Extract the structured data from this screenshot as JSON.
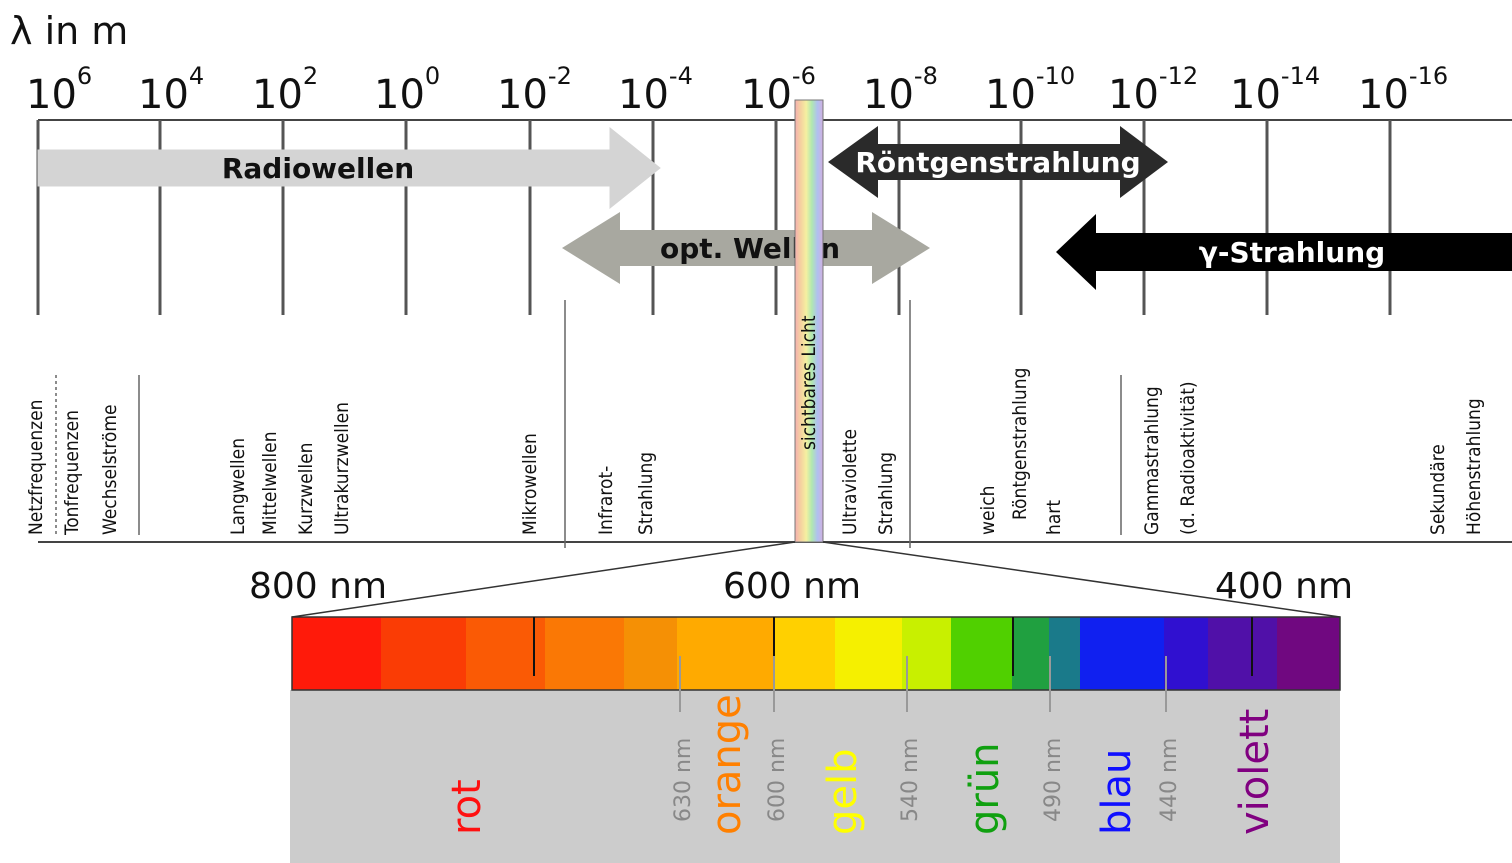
{
  "axis": {
    "title": "λ in m",
    "ticks": [
      {
        "base": "10",
        "exp": "6"
      },
      {
        "base": "10",
        "exp": "4"
      },
      {
        "base": "10",
        "exp": "2"
      },
      {
        "base": "10",
        "exp": "0"
      },
      {
        "base": "10",
        "exp": "-2"
      },
      {
        "base": "10",
        "exp": "-4"
      },
      {
        "base": "10",
        "exp": "-6"
      },
      {
        "base": "10",
        "exp": "-8"
      },
      {
        "base": "10",
        "exp": "-10"
      },
      {
        "base": "10",
        "exp": "-12"
      },
      {
        "base": "10",
        "exp": "-14"
      },
      {
        "base": "10",
        "exp": "-16"
      }
    ]
  },
  "arrows": {
    "radio": "Radiowellen",
    "xray": "Röntgenstrahlung",
    "optical": "opt. Wellen",
    "gamma": "γ-Strahlung"
  },
  "visible_label": "sichtbares Licht",
  "bands": [
    {
      "id": "netz",
      "lines": [
        "Netzfrequenzen"
      ]
    },
    {
      "id": "ton",
      "lines": [
        "Tonfrequenzen"
      ]
    },
    {
      "id": "wechsel",
      "lines": [
        "Wechselströme"
      ]
    },
    {
      "id": "lang",
      "lines": [
        "Langwellen"
      ]
    },
    {
      "id": "mittel",
      "lines": [
        "Mittelwellen"
      ]
    },
    {
      "id": "kurz",
      "lines": [
        "Kurzwellen"
      ]
    },
    {
      "id": "ukw",
      "lines": [
        "Ultrakurzwellen"
      ]
    },
    {
      "id": "mikro",
      "lines": [
        "Mikrowellen"
      ]
    },
    {
      "id": "ir",
      "lines": [
        "Infrarot-",
        "Strahlung"
      ]
    },
    {
      "id": "uv",
      "lines": [
        "Ultraviolette",
        "Strahlung"
      ]
    },
    {
      "id": "xray",
      "lines": [
        "weich",
        "Röntgenstrahlung",
        "hart"
      ]
    },
    {
      "id": "gamma",
      "lines": [
        "Gammastrahlung",
        "(d. Radioaktivität)"
      ]
    },
    {
      "id": "cosmic",
      "lines": [
        "Sekundäre",
        "Höhenstrahlung"
      ]
    }
  ],
  "spectrum": {
    "scale_labels": [
      "800 nm",
      "600 nm",
      "400 nm"
    ],
    "colors": [
      {
        "name": "rot",
        "color": "#ff1010"
      },
      {
        "name": "orange",
        "color": "#ff8000"
      },
      {
        "name": "gelb",
        "color": "#ffff00"
      },
      {
        "name": "grün",
        "color": "#10a010"
      },
      {
        "name": "blau",
        "color": "#1010ff"
      },
      {
        "name": "violett",
        "color": "#800080"
      }
    ],
    "boundaries": [
      "630 nm",
      "600 nm",
      "540 nm",
      "490 nm",
      "440 nm"
    ]
  }
}
